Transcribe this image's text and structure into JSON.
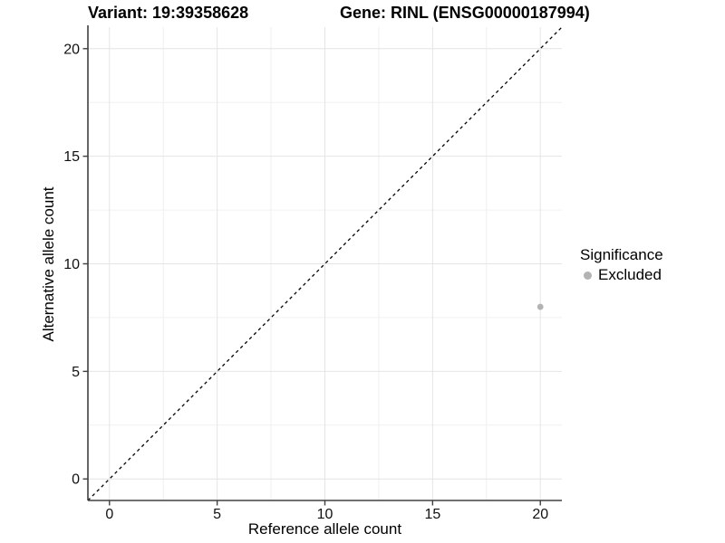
{
  "figure": {
    "title_left": "Variant: 19:39358628",
    "title_right": "Gene: RINL (ENSG00000187994)"
  },
  "chart_data": {
    "type": "scatter",
    "title": "Variant: 19:39358628    Gene: RINL (ENSG00000187994)",
    "xlabel": "Reference allele count",
    "ylabel": "Alternative allele count",
    "xlim": [
      -1,
      21
    ],
    "ylim": [
      -1,
      21
    ],
    "x_tick_values": [
      0,
      5,
      10,
      15,
      20
    ],
    "x_tick_labels": [
      "0",
      "5",
      "10",
      "15",
      "20"
    ],
    "y_tick_values": [
      0,
      5,
      10,
      15,
      20
    ],
    "y_tick_labels": [
      "0",
      "5",
      "10",
      "15",
      "20"
    ],
    "minor_grid_values": [
      2.5,
      7.5,
      12.5,
      17.5
    ],
    "grid": "on",
    "series": [
      {
        "name": "Excluded",
        "color": "#b3b3b3",
        "points": [
          [
            20,
            8
          ]
        ]
      }
    ],
    "abline": {
      "slope": 1,
      "intercept": 0,
      "style": "dashed",
      "color": "#000000"
    },
    "legend": {
      "position": "right",
      "title": "Significance",
      "items": [
        {
          "label": "Excluded",
          "color": "#b3b3b3"
        }
      ]
    }
  },
  "colors": {
    "background": "#ffffff",
    "axis_line": "#404040",
    "tick_mark": "#404040",
    "tick_label": "#111111",
    "major_grid": "#e4e4e4",
    "minor_grid": "#f0f0f0"
  }
}
